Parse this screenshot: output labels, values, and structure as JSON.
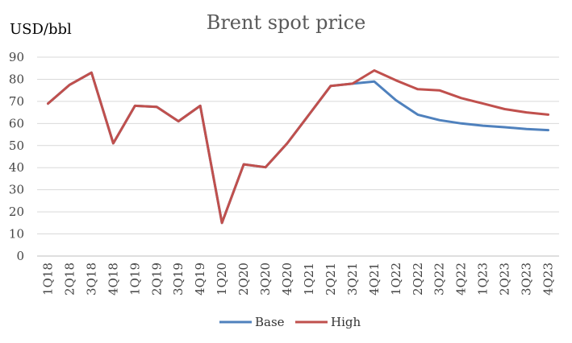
{
  "chart_data": {
    "type": "line",
    "title": "Brent spot price",
    "ylabel": "USD/bbl",
    "xlabel": "",
    "ylim": [
      0,
      90
    ],
    "yticks": [
      0,
      10,
      20,
      30,
      40,
      50,
      60,
      70,
      80,
      90
    ],
    "grid": true,
    "legend": "bottom",
    "categories": [
      "1Q18",
      "2Q18",
      "3Q18",
      "4Q18",
      "1Q19",
      "2Q19",
      "3Q19",
      "4Q19",
      "1Q20",
      "2Q20",
      "3Q20",
      "4Q20",
      "1Q21",
      "2Q21",
      "3Q21",
      "4Q21",
      "1Q22",
      "2Q22",
      "3Q22",
      "4Q22",
      "1Q23",
      "2Q23",
      "3Q23",
      "4Q23"
    ],
    "series": [
      {
        "name": "Base",
        "color": "#4f81bd",
        "values": [
          69,
          77.5,
          83,
          51,
          68,
          67.5,
          61,
          68,
          15,
          41.5,
          40.2,
          51,
          64,
          77,
          78,
          79,
          70.5,
          64,
          61.5,
          60,
          59,
          58.3,
          57.5,
          57
        ]
      },
      {
        "name": "High",
        "color": "#c0504d",
        "values": [
          69,
          77.5,
          83,
          51,
          68,
          67.5,
          61,
          68,
          15,
          41.5,
          40.2,
          51,
          64,
          77,
          78,
          84,
          79.5,
          75.5,
          75,
          71.5,
          69,
          66.5,
          65,
          64
        ]
      }
    ]
  }
}
